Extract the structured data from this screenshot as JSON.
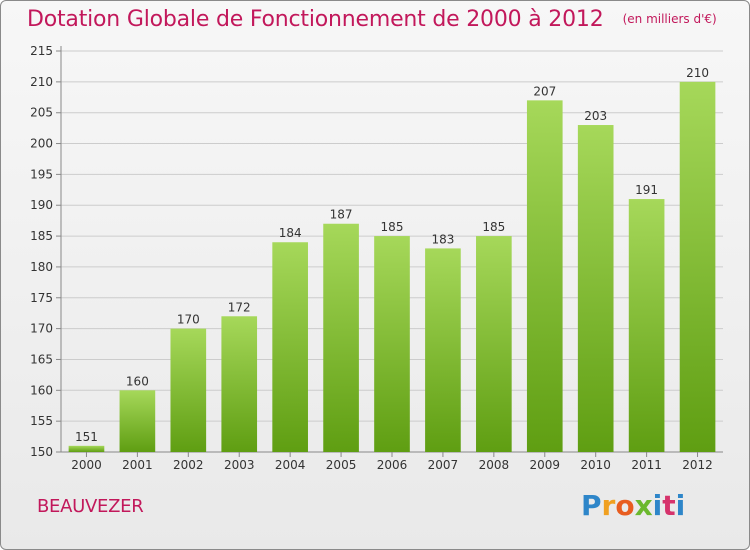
{
  "header": {
    "title": "Dotation Globale de Fonctionnement de 2000 à 2012",
    "subtitle": "(en milliers d'€)"
  },
  "footer": {
    "commune": "BEAUVEZER",
    "logo": "Proxiti",
    "logo_colors": [
      "#2e86c9",
      "#f0a020",
      "#e85d20",
      "#6bb82e",
      "#2e86c9",
      "#d6336c"
    ]
  },
  "chart_data": {
    "type": "bar",
    "title": "Dotation Globale de Fonctionnement de 2000 à 2012",
    "subtitle": "(en milliers d'€)",
    "xlabel": "",
    "ylabel": "",
    "categories": [
      "2000",
      "2001",
      "2002",
      "2003",
      "2004",
      "2005",
      "2006",
      "2007",
      "2008",
      "2009",
      "2010",
      "2011",
      "2012"
    ],
    "values": [
      151,
      160,
      170,
      172,
      184,
      187,
      185,
      183,
      185,
      207,
      203,
      191,
      210
    ],
    "ylim": [
      150,
      215
    ],
    "yticks": [
      150,
      155,
      160,
      165,
      170,
      175,
      180,
      185,
      190,
      195,
      200,
      205,
      210,
      215
    ],
    "grid": true,
    "legend": "none",
    "colors": {
      "bar_light": "#a6d85a",
      "bar_dark": "#5f9e12",
      "grid": "#cccccc",
      "axis": "#888888",
      "title": "#c2185b"
    }
  }
}
